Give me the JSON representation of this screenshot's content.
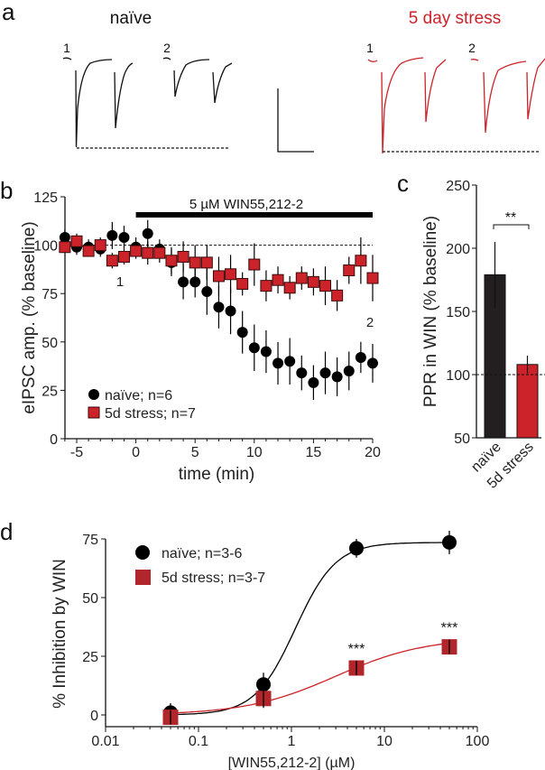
{
  "panel_a": {
    "letter": "a",
    "naive_title": "naïve",
    "stress_title": "5 day stress",
    "naive_trace_labels": [
      "1",
      "2"
    ],
    "stress_trace_labels": [
      "1",
      "2"
    ],
    "colors": {
      "naive": "#111111",
      "stress": "#cc2229"
    }
  },
  "chart_data": [
    {
      "panel": "b",
      "type": "scatter",
      "title": "",
      "xlabel": "time (min)",
      "ylabel": "eIPSC amp. (% baseline)",
      "xlim": [
        -6,
        20
      ],
      "ylim": [
        0,
        125
      ],
      "xticks": [
        -5,
        0,
        5,
        10,
        15,
        20
      ],
      "yticks": [
        0,
        25,
        50,
        75,
        100,
        125
      ],
      "reference_line": 100,
      "drug_bar": {
        "label": "5 µM WIN55,212-2",
        "start": 0,
        "end": 20
      },
      "annotations": [
        {
          "text": "1",
          "x": -1.3,
          "y": 86
        },
        {
          "text": "2",
          "x": 19.7,
          "y": 60
        }
      ],
      "legend_position": "bottom-left",
      "x": [
        -6,
        -5,
        -4,
        -3,
        -2,
        -1,
        0,
        1,
        2,
        3,
        4,
        5,
        6,
        7,
        8,
        9,
        10,
        11,
        12,
        13,
        14,
        15,
        16,
        17,
        18,
        19,
        20
      ],
      "series": [
        {
          "name": "naïve; n=6",
          "marker": "circle",
          "color": "#000000",
          "values": [
            104,
            99,
            99,
            98,
            105,
            104,
            99,
            106,
            98,
            91,
            81,
            81,
            76,
            68,
            66,
            55,
            47,
            45,
            39,
            40,
            34,
            29,
            34,
            32,
            35,
            42,
            39
          ],
          "errors": [
            4,
            4,
            4,
            4,
            7,
            6,
            5,
            7,
            5,
            7,
            9,
            8,
            12,
            11,
            12,
            11,
            12,
            11,
            11,
            12,
            9,
            9,
            11,
            10,
            10,
            8,
            10
          ]
        },
        {
          "name": "5d stress; n=7",
          "marker": "square",
          "color": "#cc2229",
          "values": [
            99,
            102,
            97,
            100,
            92,
            94,
            97,
            96,
            96,
            92,
            94,
            91,
            91,
            84,
            85,
            80,
            90,
            79,
            82,
            78,
            83,
            81,
            79,
            74,
            87,
            92,
            83
          ],
          "errors": [
            3,
            4,
            3,
            4,
            4,
            4,
            4,
            6,
            5,
            7,
            8,
            9,
            9,
            10,
            10,
            6,
            11,
            8,
            7,
            6,
            6,
            7,
            10,
            8,
            7,
            12,
            12
          ]
        }
      ]
    },
    {
      "panel": "c",
      "type": "bar",
      "ylabel": "PPR in WIN (% baseline)",
      "ylim": [
        50,
        250
      ],
      "yticks": [
        50,
        100,
        150,
        200,
        250
      ],
      "reference_line": 100,
      "categories": [
        "naïve",
        "5d stress"
      ],
      "values": [
        179,
        108
      ],
      "errors": [
        26,
        7
      ],
      "colors": [
        "#231f20",
        "#cc2229"
      ],
      "significance": "**"
    },
    {
      "panel": "d",
      "type": "scatter",
      "xscale": "log",
      "xlabel": "[WIN55,212-2] (µM)",
      "ylabel": "% Inhibition by WIN",
      "xlim": [
        0.01,
        100
      ],
      "ylim": [
        -5,
        75
      ],
      "xticks": [
        0.01,
        0.1,
        1,
        10,
        100
      ],
      "xtick_labels": [
        "0.01",
        "0.1",
        "1",
        "10",
        "100"
      ],
      "yticks": [
        0,
        25,
        50,
        75
      ],
      "legend_position": "top-left",
      "x": [
        0.05,
        0.5,
        5,
        50
      ],
      "series": [
        {
          "name": "naïve; n=3-6",
          "marker": "circle",
          "color": "#000000",
          "values": [
            1,
            13,
            71,
            73.5
          ],
          "errors": [
            4,
            5,
            4,
            5
          ],
          "fit": {
            "bottom": 0,
            "top": 73.5,
            "ec50": 1.1,
            "hill": 2
          }
        },
        {
          "name": "5d stress; n=3-7",
          "marker": "square",
          "color": "#b0262b",
          "values": [
            -1,
            7,
            20,
            29
          ],
          "errors": [
            3,
            4,
            3,
            3
          ],
          "fit": {
            "bottom": 0,
            "top": 33,
            "ec50": 3,
            "hill": 0.9
          },
          "significance": [
            "",
            "",
            "***",
            "***"
          ]
        }
      ]
    }
  ],
  "panel_letters": {
    "b": "b",
    "c": "c",
    "d": "d"
  }
}
